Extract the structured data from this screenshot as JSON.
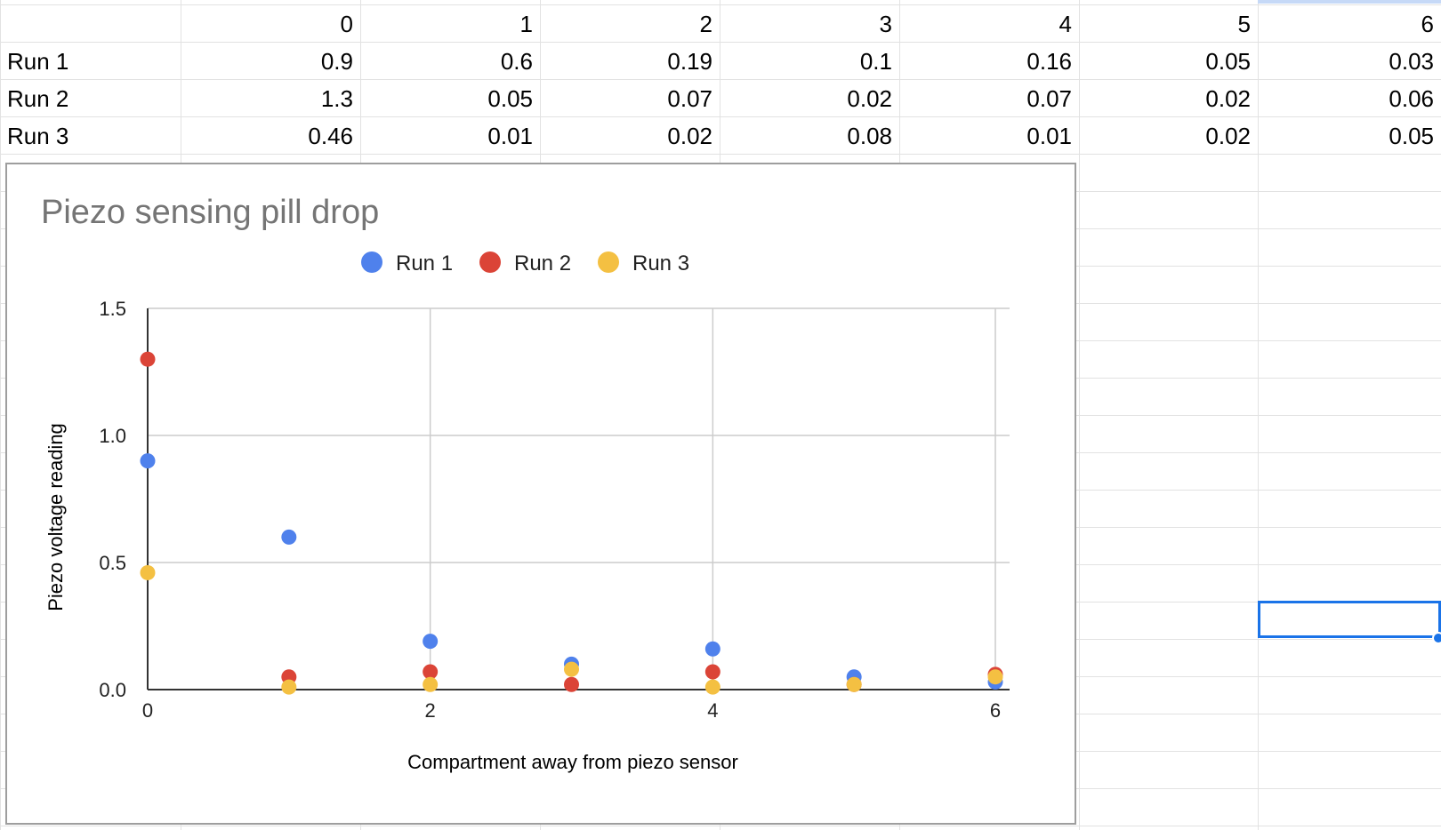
{
  "sheet": {
    "header_row": [
      "",
      "0",
      "1",
      "2",
      "3",
      "4",
      "5",
      "6"
    ],
    "rows": [
      {
        "label": "Run 1",
        "values": [
          "0.9",
          "0.6",
          "0.19",
          "0.1",
          "0.16",
          "0.05",
          "0.03"
        ]
      },
      {
        "label": "Run 2",
        "values": [
          "1.3",
          "0.05",
          "0.07",
          "0.02",
          "0.07",
          "0.02",
          "0.06"
        ]
      },
      {
        "label": "Run 3",
        "values": [
          "0.46",
          "0.01",
          "0.02",
          "0.08",
          "0.01",
          "0.02",
          "0.05"
        ]
      }
    ]
  },
  "chart_data": {
    "type": "scatter",
    "title": "Piezo sensing pill drop",
    "xlabel": "Compartment away from piezo sensor",
    "ylabel": "Piezo voltage reading",
    "x": [
      0,
      1,
      2,
      3,
      4,
      5,
      6
    ],
    "xlim": [
      0,
      6
    ],
    "ylim": [
      0,
      1.5
    ],
    "xticks": [
      "0",
      "2",
      "4",
      "6"
    ],
    "yticks": [
      "0.0",
      "0.5",
      "1.0",
      "1.5"
    ],
    "grid": true,
    "legend_position": "top",
    "series": [
      {
        "name": "Run 1",
        "color": "#4f81ec",
        "values": [
          0.9,
          0.6,
          0.19,
          0.1,
          0.16,
          0.05,
          0.03
        ]
      },
      {
        "name": "Run 2",
        "color": "#db4437",
        "values": [
          1.3,
          0.05,
          0.07,
          0.02,
          0.07,
          0.02,
          0.06
        ]
      },
      {
        "name": "Run 3",
        "color": "#f4c042",
        "values": [
          0.46,
          0.01,
          0.02,
          0.08,
          0.01,
          0.02,
          0.05
        ]
      }
    ]
  }
}
